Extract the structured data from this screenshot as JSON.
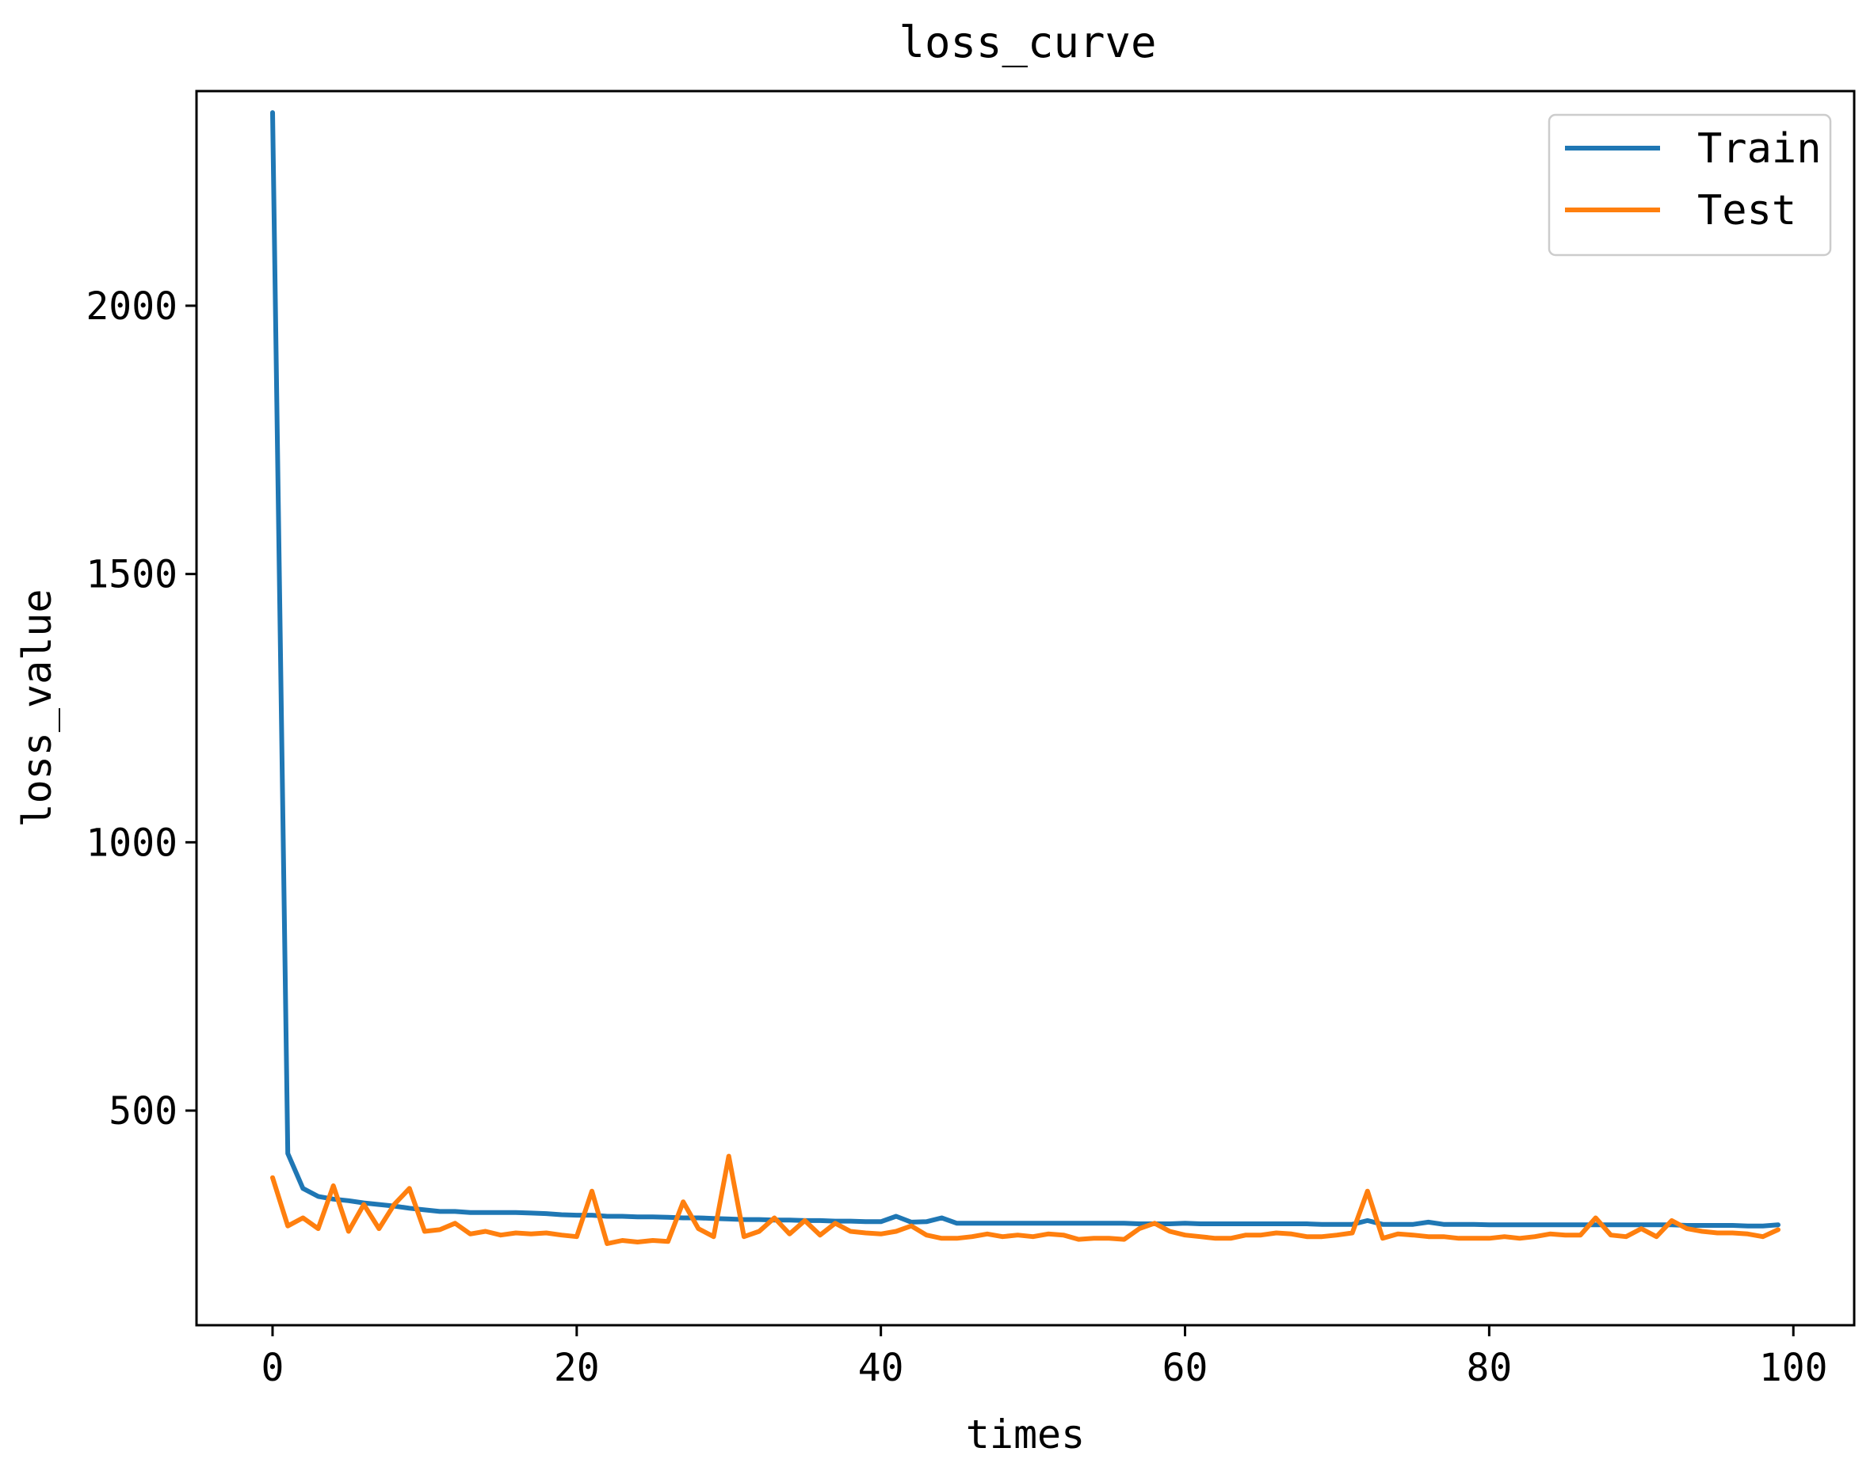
{
  "chart_data": {
    "type": "line",
    "title": "loss_curve",
    "xlabel": "times",
    "ylabel": "loss_value",
    "xlim": [
      -5,
      104
    ],
    "ylim": [
      100,
      2400
    ],
    "xticks": [
      0,
      20,
      40,
      60,
      80,
      100
    ],
    "yticks": [
      500,
      1000,
      1500,
      2000
    ],
    "grid": false,
    "legend_position": "top-right",
    "x": [
      0,
      1,
      2,
      3,
      4,
      5,
      6,
      7,
      8,
      9,
      10,
      11,
      12,
      13,
      14,
      15,
      16,
      17,
      18,
      19,
      20,
      21,
      22,
      23,
      24,
      25,
      26,
      27,
      28,
      29,
      30,
      31,
      32,
      33,
      34,
      35,
      36,
      37,
      38,
      39,
      40,
      41,
      42,
      43,
      44,
      45,
      46,
      47,
      48,
      49,
      50,
      51,
      52,
      53,
      54,
      55,
      56,
      57,
      58,
      59,
      60,
      61,
      62,
      63,
      64,
      65,
      66,
      67,
      68,
      69,
      70,
      71,
      72,
      73,
      74,
      75,
      76,
      77,
      78,
      79,
      80,
      81,
      82,
      83,
      84,
      85,
      86,
      87,
      88,
      89,
      90,
      91,
      92,
      93,
      94,
      95,
      96,
      97,
      98,
      99
    ],
    "series": [
      {
        "name": "Train",
        "color": "#1f77b4",
        "values": [
          2360,
          420,
          355,
          340,
          335,
          332,
          328,
          325,
          322,
          318,
          315,
          312,
          312,
          310,
          310,
          310,
          310,
          309,
          308,
          306,
          305,
          305,
          303,
          303,
          302,
          302,
          301,
          300,
          300,
          299,
          298,
          297,
          297,
          296,
          296,
          295,
          295,
          294,
          294,
          293,
          293,
          303,
          292,
          293,
          300,
          290,
          290,
          290,
          290,
          290,
          290,
          290,
          290,
          290,
          290,
          290,
          290,
          289,
          289,
          289,
          290,
          289,
          289,
          289,
          289,
          289,
          289,
          289,
          289,
          288,
          288,
          288,
          295,
          288,
          288,
          288,
          292,
          288,
          288,
          288,
          287,
          287,
          287,
          287,
          287,
          287,
          287,
          287,
          287,
          287,
          287,
          287,
          287,
          286,
          286,
          286,
          286,
          285,
          285,
          287
        ]
      },
      {
        "name": "Test",
        "color": "#ff7f0e",
        "values": [
          375,
          285,
          300,
          280,
          360,
          275,
          325,
          280,
          325,
          355,
          275,
          278,
          290,
          270,
          275,
          268,
          272,
          270,
          272,
          268,
          265,
          350,
          252,
          258,
          255,
          258,
          256,
          330,
          280,
          265,
          415,
          265,
          275,
          300,
          270,
          295,
          268,
          290,
          275,
          272,
          270,
          275,
          285,
          268,
          262,
          262,
          265,
          270,
          265,
          268,
          265,
          270,
          268,
          260,
          262,
          262,
          260,
          280,
          290,
          275,
          268,
          265,
          262,
          262,
          268,
          268,
          272,
          270,
          265,
          265,
          268,
          272,
          350,
          262,
          270,
          268,
          265,
          265,
          262,
          262,
          262,
          265,
          262,
          265,
          270,
          268,
          268,
          300,
          268,
          265,
          280,
          265,
          295,
          280,
          275,
          272,
          272,
          270,
          265,
          278
        ]
      }
    ]
  }
}
